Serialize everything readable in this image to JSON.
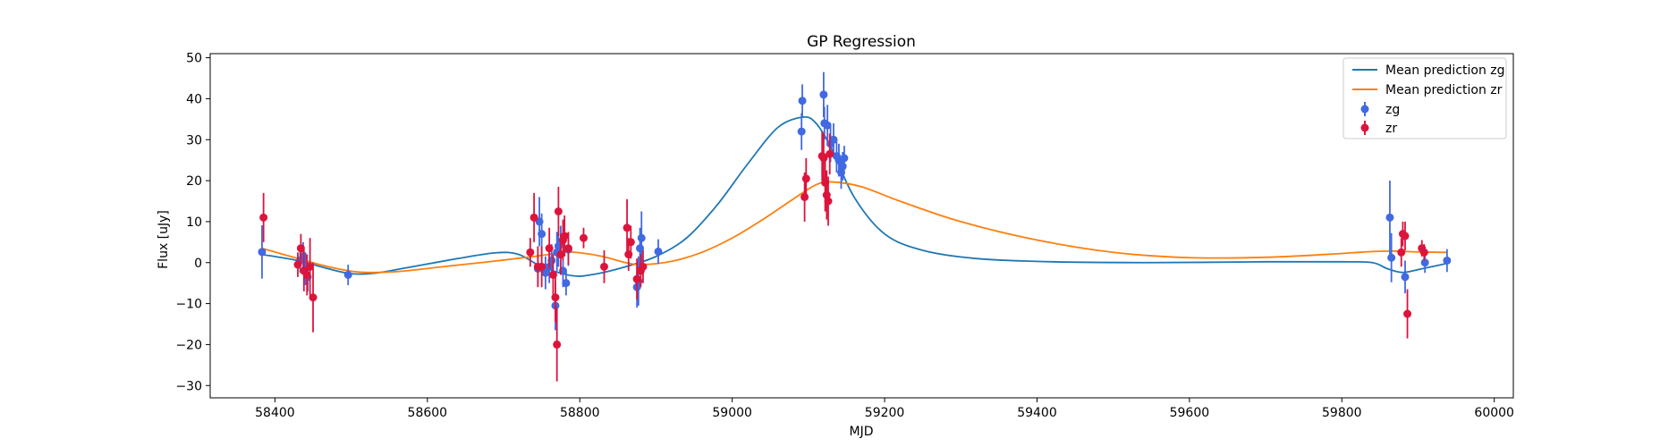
{
  "chart_data": {
    "type": "scatter",
    "title": "GP Regression",
    "xlabel": "MJD",
    "ylabel": "Flux [uJy]",
    "xlim": [
      58315,
      60025
    ],
    "ylim": [
      -33,
      51
    ],
    "xticks": [
      58400,
      58600,
      58800,
      59000,
      59200,
      59400,
      59600,
      59800,
      60000
    ],
    "yticks": [
      -30,
      -20,
      -10,
      0,
      10,
      20,
      30,
      40,
      50
    ],
    "grid": false,
    "legend_position": "upper right",
    "series": [
      {
        "name": "Mean prediction zg",
        "kind": "line",
        "color": "#1f77b4",
        "x": [
          58383,
          58430,
          58470,
          58500,
          58530,
          58580,
          58640,
          58690,
          58720,
          58750,
          58790,
          58820,
          58860,
          58900,
          58940,
          58980,
          59020,
          59060,
          59093,
          59110,
          59130,
          59160,
          59200,
          59250,
          59320,
          59420,
          59550,
          59700,
          59800,
          59840,
          59860,
          59880,
          59905,
          59938
        ],
        "y": [
          2,
          0.5,
          -1.5,
          -2.7,
          -2.6,
          -1,
          1,
          2.4,
          2,
          -1,
          -3.2,
          -2.8,
          -1,
          1.5,
          6,
          14,
          24,
          33,
          35.5,
          34,
          28,
          16,
          7,
          3,
          1,
          0.2,
          0,
          0.2,
          0.2,
          0,
          -1.5,
          -2.4,
          -1.5,
          -0.2
        ]
      },
      {
        "name": "Mean prediction zr",
        "kind": "line",
        "color": "#ff7f0e",
        "x": [
          58383,
          58430,
          58470,
          58510,
          58560,
          58620,
          58680,
          58740,
          58780,
          58800,
          58830,
          58860,
          58880,
          58920,
          58960,
          59000,
          59040,
          59080,
          59110,
          59130,
          59170,
          59220,
          59300,
          59400,
          59500,
          59600,
          59700,
          59780,
          59840,
          59870,
          59900,
          59938
        ],
        "y": [
          3.5,
          1,
          -1,
          -2.3,
          -2.2,
          -1,
          0.2,
          1.5,
          2.5,
          2.4,
          1.5,
          0,
          -0.5,
          0.3,
          2.5,
          6,
          10.5,
          15.5,
          19,
          19.7,
          18.5,
          15,
          10,
          5.5,
          2.5,
          1.2,
          1.3,
          2,
          2.7,
          2.8,
          2.6,
          2.5
        ]
      },
      {
        "name": "zg",
        "kind": "errorbar",
        "color": "#4169e1",
        "x": [
          58383,
          58433,
          58437,
          58440,
          58443,
          58496,
          58745,
          58747,
          58750,
          58755,
          58760,
          58763,
          58768,
          58770,
          58772,
          58775,
          58778,
          58782,
          58785,
          58875,
          58877,
          58879,
          58881,
          58903,
          59091,
          59092,
          59120,
          59121,
          59125,
          59129,
          59133,
          59137,
          59140,
          59143,
          59145,
          59147,
          59863,
          59865,
          59883,
          59909,
          59938
        ],
        "y": [
          2.6,
          0.5,
          1.5,
          -1.5,
          -3.5,
          -3,
          -1.5,
          10,
          7,
          -2.5,
          -1,
          0.5,
          -10.5,
          2.5,
          4,
          5,
          -2,
          -5,
          3.2,
          -6,
          -4.5,
          3.5,
          6,
          2.7,
          32,
          39.5,
          41,
          34,
          33.5,
          29,
          30,
          26,
          25,
          22,
          23.5,
          25.5,
          11,
          1.2,
          -3.5,
          0,
          0.5
        ],
        "yerr": [
          6.5,
          3,
          3.5,
          4,
          3.5,
          2.5,
          3.5,
          6,
          5,
          4,
          4,
          4,
          6,
          5,
          5,
          4,
          4,
          3,
          4,
          5,
          6,
          5,
          6.5,
          3,
          4.5,
          4,
          5.5,
          4,
          5,
          4.5,
          4,
          4,
          4,
          4,
          3.5,
          3,
          9,
          6,
          4,
          2.5,
          2.8
        ]
      },
      {
        "name": "zr",
        "kind": "errorbar",
        "color": "#dc143c",
        "x": [
          58385,
          58430,
          58434,
          58438,
          58442,
          58446,
          58450,
          58735,
          58740,
          58745,
          58750,
          58760,
          58765,
          58768,
          58770,
          58772,
          58775,
          58778,
          58780,
          58785,
          58805,
          58832,
          58862,
          58864,
          58867,
          58875,
          58880,
          58883,
          59095,
          59097,
          59118,
          59120,
          59122,
          59124,
          59126,
          59128,
          59878,
          59880,
          59883,
          59886,
          59905,
          59908
        ],
        "y": [
          11,
          -0.5,
          3.5,
          -2,
          -3,
          -1,
          -8.5,
          2.5,
          11,
          -1,
          -1,
          3.5,
          -3,
          -8.5,
          -20,
          12.5,
          2,
          5.5,
          6.5,
          3.5,
          6,
          -1,
          8.5,
          2,
          5,
          -4,
          -2,
          -1,
          16,
          20.5,
          26,
          25.5,
          19.5,
          16.5,
          15,
          26.5,
          2.5,
          7,
          6.5,
          -12.5,
          3.5,
          2.5
        ],
        "yerr": [
          6,
          3,
          3.5,
          5,
          5,
          7,
          8.5,
          3.5,
          6,
          5,
          5,
          5,
          5,
          6,
          9,
          6,
          5,
          5,
          5,
          4,
          2.5,
          4,
          7,
          4,
          4,
          5,
          4,
          4,
          6,
          5,
          6,
          6,
          7,
          6,
          6,
          5,
          3.5,
          3,
          3.5,
          6,
          2,
          2
        ]
      }
    ]
  }
}
